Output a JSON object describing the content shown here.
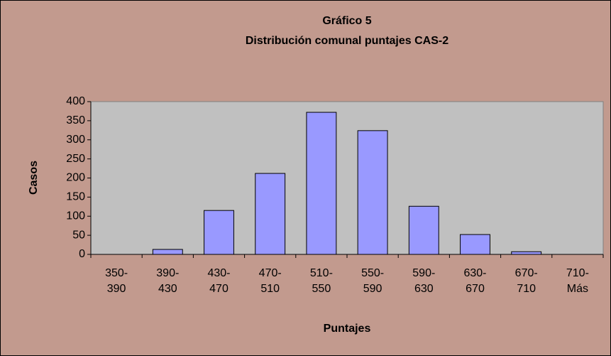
{
  "chart_data": {
    "type": "bar",
    "title": "Gráfico 5",
    "subtitle": "Distribución comunal puntajes CAS-2",
    "x_label": "Puntajes",
    "y_label": "Casos",
    "categories": [
      "350-390",
      "390-430",
      "430-470",
      "470-510",
      "510-550",
      "550-590",
      "590-630",
      "630-670",
      "670-710",
      "710-Más"
    ],
    "values": [
      0,
      13,
      115,
      212,
      372,
      324,
      126,
      52,
      7,
      0
    ],
    "color": "#9999ff",
    "ylim": [
      0,
      400
    ],
    "yticks": [
      0,
      50,
      100,
      150,
      200,
      250,
      300,
      350,
      400
    ],
    "grid": false
  }
}
